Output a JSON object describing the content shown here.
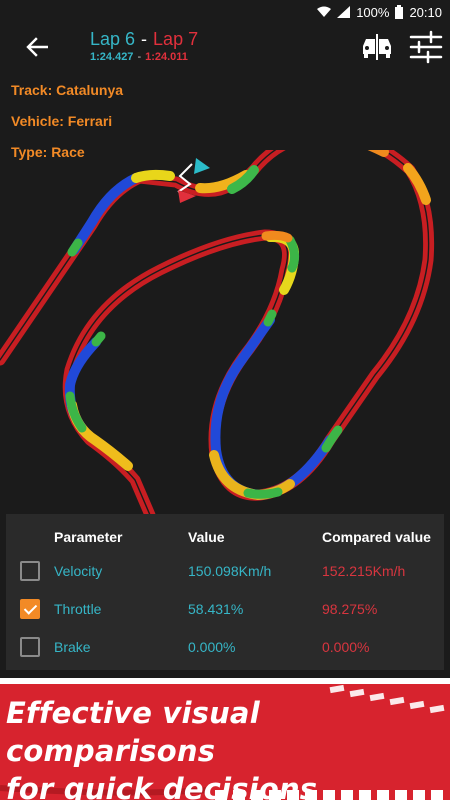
{
  "status": {
    "battery": "100%",
    "time": "20:10"
  },
  "header": {
    "lap_a": "Lap 6",
    "separator": "-",
    "lap_b": "Lap 7",
    "time_a": "1:24.427",
    "time_sep": "-",
    "time_b": "1:24.011"
  },
  "info": {
    "track": "Track: Catalunya",
    "vehicle": "Vehicle: Ferrari",
    "type": "Type: Race"
  },
  "table": {
    "headers": {
      "parameter": "Parameter",
      "value": "Value",
      "compared": "Compared value"
    },
    "rows": [
      {
        "parameter": "Velocity",
        "value": "150.098Km/h",
        "compared": "152.215Km/h",
        "checked": false
      },
      {
        "parameter": "Throttle",
        "value": "58.431%",
        "compared": "98.275%",
        "checked": true
      },
      {
        "parameter": "Brake",
        "value": "0.000%",
        "compared": "0.000%",
        "checked": false
      }
    ]
  },
  "banner": {
    "line1": "Effective visual comparisons",
    "line2": "for quick decisions"
  },
  "colors": {
    "accent_cyan": "#36b6c7",
    "accent_red": "#e1303c",
    "accent_orange": "#f28a26",
    "banner_red": "#d7232e",
    "track_red": "#cc1f22",
    "track_blue": "#2149d8"
  }
}
